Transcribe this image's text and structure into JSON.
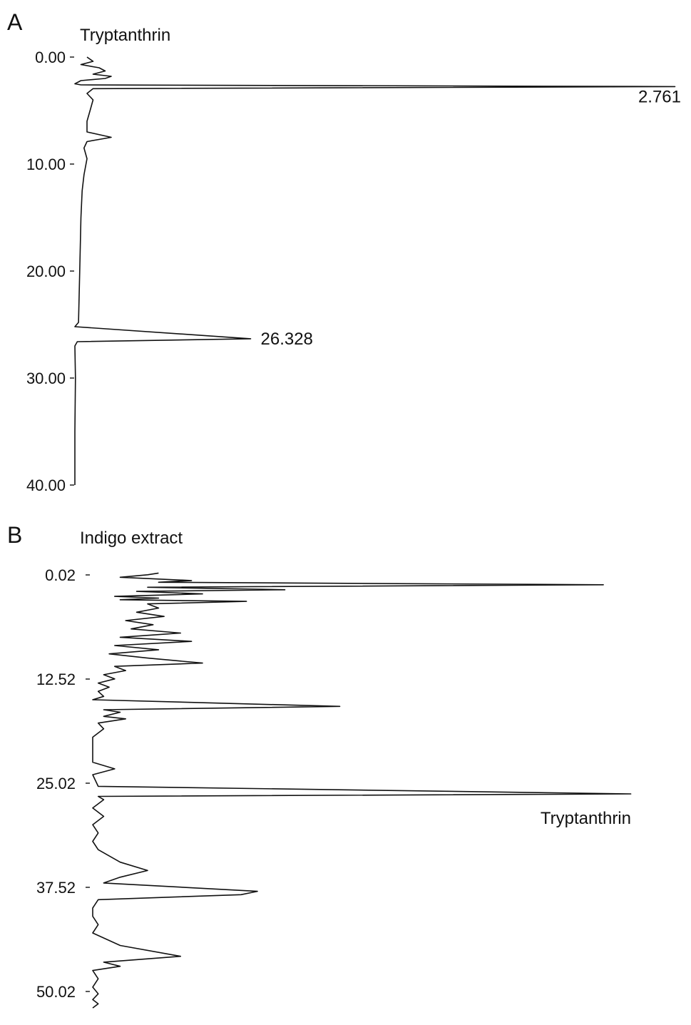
{
  "chart_data": [
    {
      "type": "line",
      "panel": "A",
      "title": "Tryptanthrin",
      "orientation": "vertical-time-axis",
      "ylabel": "",
      "xlabel": "",
      "time_range": [
        0,
        40
      ],
      "ticks": [
        {
          "value": 0,
          "label": "0.00"
        },
        {
          "value": 10,
          "label": "10.00"
        },
        {
          "value": 20,
          "label": "20.00"
        },
        {
          "value": 30,
          "label": "30.00"
        },
        {
          "value": 40,
          "label": "40.00"
        }
      ],
      "peaks": [
        {
          "time": 2.761,
          "label": "2.761",
          "relative_height": 1.0
        },
        {
          "time": 26.328,
          "label": "26.328",
          "relative_height": 0.29
        }
      ],
      "series": [
        {
          "values": [
            [
              0.0,
              0.02
            ],
            [
              0.4,
              0.03
            ],
            [
              0.7,
              0.01
            ],
            [
              1.0,
              0.04
            ],
            [
              1.3,
              0.05
            ],
            [
              1.6,
              0.03
            ],
            [
              1.8,
              0.06
            ],
            [
              2.0,
              0.05
            ],
            [
              2.2,
              0.01
            ],
            [
              2.5,
              0.0
            ],
            [
              2.6,
              0.01
            ],
            [
              2.76,
              0.99
            ],
            [
              2.95,
              0.03
            ],
            [
              3.4,
              0.02
            ],
            [
              4.0,
              0.03
            ],
            [
              5.0,
              0.025
            ],
            [
              6.0,
              0.02
            ],
            [
              7.0,
              0.02
            ],
            [
              7.5,
              0.06
            ],
            [
              7.9,
              0.02
            ],
            [
              8.5,
              0.015
            ],
            [
              9.5,
              0.02
            ],
            [
              11.0,
              0.015
            ],
            [
              12.5,
              0.012
            ],
            [
              15.0,
              0.01
            ],
            [
              20.0,
              0.008
            ],
            [
              24.8,
              0.006
            ],
            [
              25.2,
              0.0
            ],
            [
              26.33,
              0.29
            ],
            [
              26.6,
              0.004
            ],
            [
              27.0,
              0.0
            ],
            [
              30.0,
              0.001
            ],
            [
              35.0,
              0.0
            ],
            [
              40.0,
              0.0
            ]
          ]
        }
      ]
    },
    {
      "type": "line",
      "panel": "B",
      "title": "Indigo extract",
      "orientation": "vertical-time-axis",
      "ylabel": "",
      "xlabel": "",
      "time_range": [
        0.02,
        50.02
      ],
      "ticks": [
        {
          "value": 0.02,
          "label": "0.02"
        },
        {
          "value": 12.52,
          "label": "12.52"
        },
        {
          "value": 25.02,
          "label": "25.02"
        },
        {
          "value": 37.52,
          "label": "37.52"
        },
        {
          "value": 50.02,
          "label": "50.02"
        }
      ],
      "peaks": [
        {
          "time": 26.3,
          "label": "Tryptanthrin",
          "relative_height": 0.98
        }
      ],
      "series": [
        {
          "values": [
            [
              -0.2,
              0.12
            ],
            [
              0.0,
              0.1
            ],
            [
              0.3,
              0.05
            ],
            [
              0.7,
              0.18
            ],
            [
              0.9,
              0.12
            ],
            [
              1.2,
              0.93
            ],
            [
              1.5,
              0.1
            ],
            [
              1.8,
              0.35
            ],
            [
              2.0,
              0.08
            ],
            [
              2.3,
              0.2
            ],
            [
              2.6,
              0.04
            ],
            [
              2.8,
              0.12
            ],
            [
              3.0,
              0.05
            ],
            [
              3.2,
              0.28
            ],
            [
              3.5,
              0.1
            ],
            [
              4.0,
              0.12
            ],
            [
              4.5,
              0.08
            ],
            [
              5.0,
              0.13
            ],
            [
              5.5,
              0.06
            ],
            [
              6.0,
              0.11
            ],
            [
              6.5,
              0.07
            ],
            [
              7.0,
              0.16
            ],
            [
              7.5,
              0.05
            ],
            [
              8.0,
              0.18
            ],
            [
              8.5,
              0.04
            ],
            [
              9.0,
              0.12
            ],
            [
              9.5,
              0.03
            ],
            [
              10.0,
              0.1
            ],
            [
              10.6,
              0.2
            ],
            [
              11.0,
              0.04
            ],
            [
              11.5,
              0.06
            ],
            [
              12.0,
              0.02
            ],
            [
              12.5,
              0.04
            ],
            [
              13.0,
              0.01
            ],
            [
              13.5,
              0.03
            ],
            [
              14.0,
              0.01
            ],
            [
              14.6,
              0.02
            ],
            [
              15.0,
              0.0
            ],
            [
              15.8,
              0.45
            ],
            [
              16.2,
              0.02
            ],
            [
              16.5,
              0.05
            ],
            [
              17.0,
              0.02
            ],
            [
              17.3,
              0.06
            ],
            [
              17.8,
              0.01
            ],
            [
              18.5,
              0.02
            ],
            [
              19.5,
              0.0
            ],
            [
              21.0,
              0.0
            ],
            [
              22.5,
              0.0
            ],
            [
              23.3,
              0.04
            ],
            [
              24.0,
              0.0
            ],
            [
              25.4,
              0.01
            ],
            [
              26.3,
              0.98
            ],
            [
              26.6,
              0.01
            ],
            [
              27.0,
              0.02
            ],
            [
              28.0,
              0.0
            ],
            [
              29.0,
              0.02
            ],
            [
              30.0,
              0.0
            ],
            [
              31.0,
              0.01
            ],
            [
              32.0,
              0.0
            ],
            [
              33.0,
              0.01
            ],
            [
              34.5,
              0.05
            ],
            [
              35.5,
              0.1
            ],
            [
              36.3,
              0.05
            ],
            [
              37.0,
              0.02
            ],
            [
              38.0,
              0.3
            ],
            [
              38.4,
              0.27
            ],
            [
              39.0,
              0.01
            ],
            [
              40.0,
              0.0
            ],
            [
              41.0,
              0.0
            ],
            [
              42.0,
              0.01
            ],
            [
              43.0,
              0.0
            ],
            [
              44.5,
              0.05
            ],
            [
              45.8,
              0.16
            ],
            [
              46.5,
              0.02
            ],
            [
              47.0,
              0.05
            ],
            [
              47.5,
              0.0
            ],
            [
              48.5,
              0.01
            ],
            [
              49.5,
              0.0
            ],
            [
              50.3,
              0.01
            ],
            [
              51.0,
              0.0
            ],
            [
              51.5,
              0.01
            ],
            [
              52.0,
              0.0
            ]
          ]
        }
      ]
    }
  ]
}
